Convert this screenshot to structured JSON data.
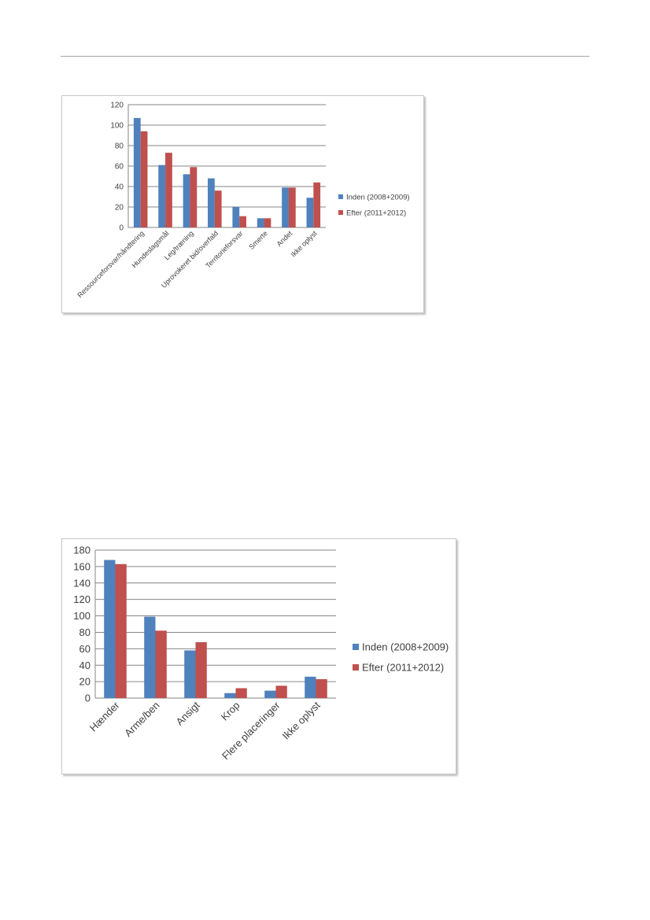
{
  "colors": {
    "series1": "#4f81bd",
    "series2": "#c0504d",
    "grid": "#868686",
    "text": "#404040"
  },
  "chart_data": [
    {
      "type": "bar",
      "title": "",
      "xlabel": "",
      "ylabel": "",
      "categories": [
        "Ressourceforsvar/håndtering",
        "Hundeslagsmål",
        "Leg/træning",
        "Uprovokeret  bid/overfald",
        "Territorieforsvar",
        "Smerte",
        "Andet",
        "Ikke oplyst"
      ],
      "series": [
        {
          "name": "Inden (2008+2009)",
          "values": [
            107,
            61,
            52,
            48,
            20,
            9,
            39,
            29
          ]
        },
        {
          "name": "Efter (2011+2012)",
          "values": [
            94,
            73,
            59,
            36,
            11,
            9,
            39,
            44
          ]
        }
      ],
      "ylim": [
        0,
        120
      ],
      "yticks": [
        "0",
        "20",
        "40",
        "60",
        "80",
        "100",
        "120"
      ],
      "grid": true,
      "legend": "right"
    },
    {
      "type": "bar",
      "title": "",
      "xlabel": "",
      "ylabel": "",
      "categories": [
        "Hænder",
        "Arme/ben",
        "Ansigt",
        "Krop",
        "Flere placeringer",
        "Ikke oplyst"
      ],
      "series": [
        {
          "name": "Inden (2008+2009)",
          "values": [
            168,
            99,
            58,
            6,
            9,
            26
          ]
        },
        {
          "name": "Efter (2011+2012)",
          "values": [
            163,
            82,
            68,
            12,
            15,
            23
          ]
        }
      ],
      "ylim": [
        0,
        180
      ],
      "yticks": [
        "0",
        "20",
        "40",
        "60",
        "80",
        "100",
        "120",
        "140",
        "160",
        "180"
      ],
      "grid": true,
      "legend": "right"
    }
  ]
}
